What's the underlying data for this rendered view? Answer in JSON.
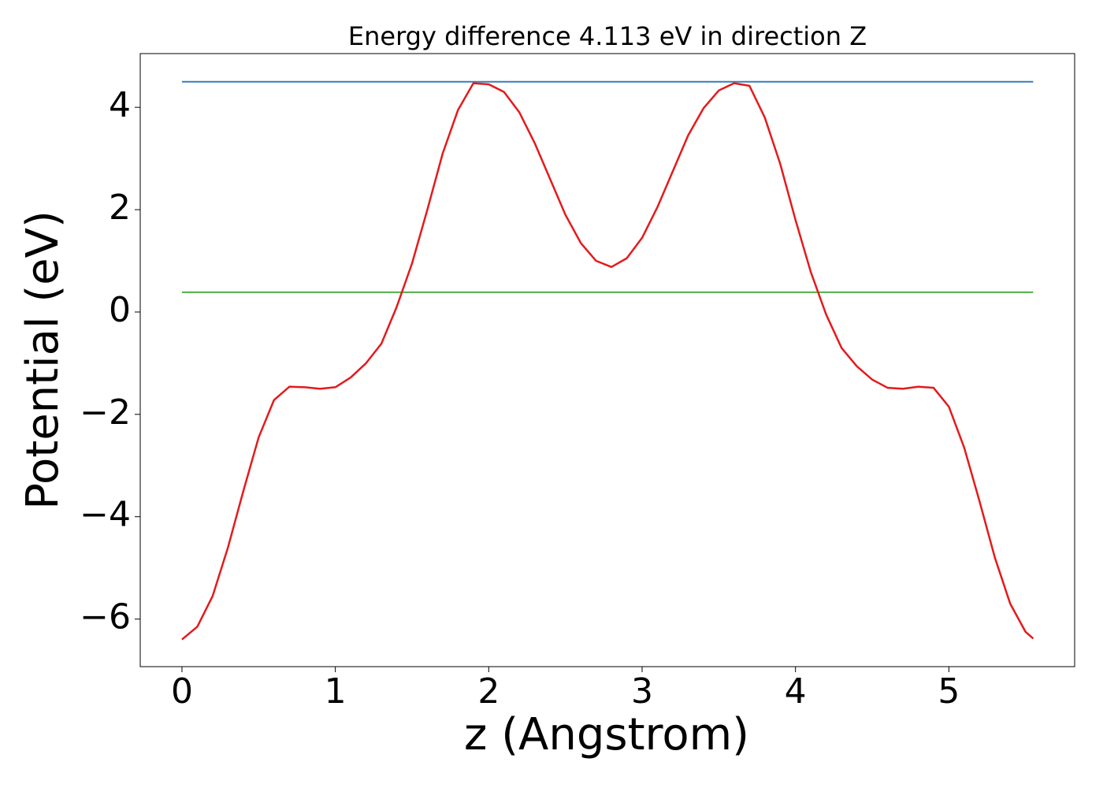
{
  "chart_data": {
    "type": "line",
    "title": "Energy difference 4.113 eV in direction Z",
    "xlabel": "z (Angstrom)",
    "ylabel": "Potential (eV)",
    "x": [
      0,
      0.1,
      0.2,
      0.3,
      0.4,
      0.5,
      0.6,
      0.7,
      0.8,
      0.9,
      1.0,
      1.1,
      1.2,
      1.3,
      1.4,
      1.5,
      1.6,
      1.7,
      1.8,
      1.9,
      2.0,
      2.1,
      2.2,
      2.3,
      2.4,
      2.5,
      2.6,
      2.7,
      2.8,
      2.9,
      3.0,
      3.1,
      3.2,
      3.3,
      3.4,
      3.5,
      3.6,
      3.7,
      3.8,
      3.9,
      4.0,
      4.1,
      4.2,
      4.3,
      4.4,
      4.5,
      4.6,
      4.7,
      4.8,
      4.9,
      5.0,
      5.1,
      5.2,
      5.3,
      5.4,
      5.5,
      5.55
    ],
    "series": [
      {
        "color": "#e41a1c",
        "values": [
          -6.4,
          -6.15,
          -5.55,
          -4.6,
          -3.5,
          -2.45,
          -1.72,
          -1.46,
          -1.47,
          -1.5,
          -1.47,
          -1.28,
          -1.0,
          -0.62,
          0.1,
          0.95,
          2.0,
          3.1,
          3.95,
          4.47,
          4.45,
          4.3,
          3.9,
          3.3,
          2.6,
          1.9,
          1.35,
          1.0,
          0.88,
          1.05,
          1.45,
          2.05,
          2.75,
          3.45,
          3.98,
          4.33,
          4.47,
          4.42,
          3.8,
          2.9,
          1.8,
          0.78,
          -0.05,
          -0.7,
          -1.06,
          -1.32,
          -1.48,
          -1.5,
          -1.46,
          -1.48,
          -1.85,
          -2.65,
          -3.7,
          -4.8,
          -5.7,
          -6.25,
          -6.38
        ]
      }
    ],
    "hlines": [
      {
        "value": 4.5,
        "color": "#377eb8"
      },
      {
        "value": 0.387,
        "color": "#4daf4a"
      }
    ],
    "xlim": [
      -0.272,
      5.82
    ],
    "ylim": [
      -6.93,
      5.05
    ],
    "xticks": [
      0,
      1,
      2,
      3,
      4,
      5
    ],
    "yticks": [
      {
        "value": -6,
        "label": "−6"
      },
      {
        "value": -4,
        "label": "−4"
      },
      {
        "value": -2,
        "label": "−2"
      },
      0,
      2,
      4
    ]
  }
}
